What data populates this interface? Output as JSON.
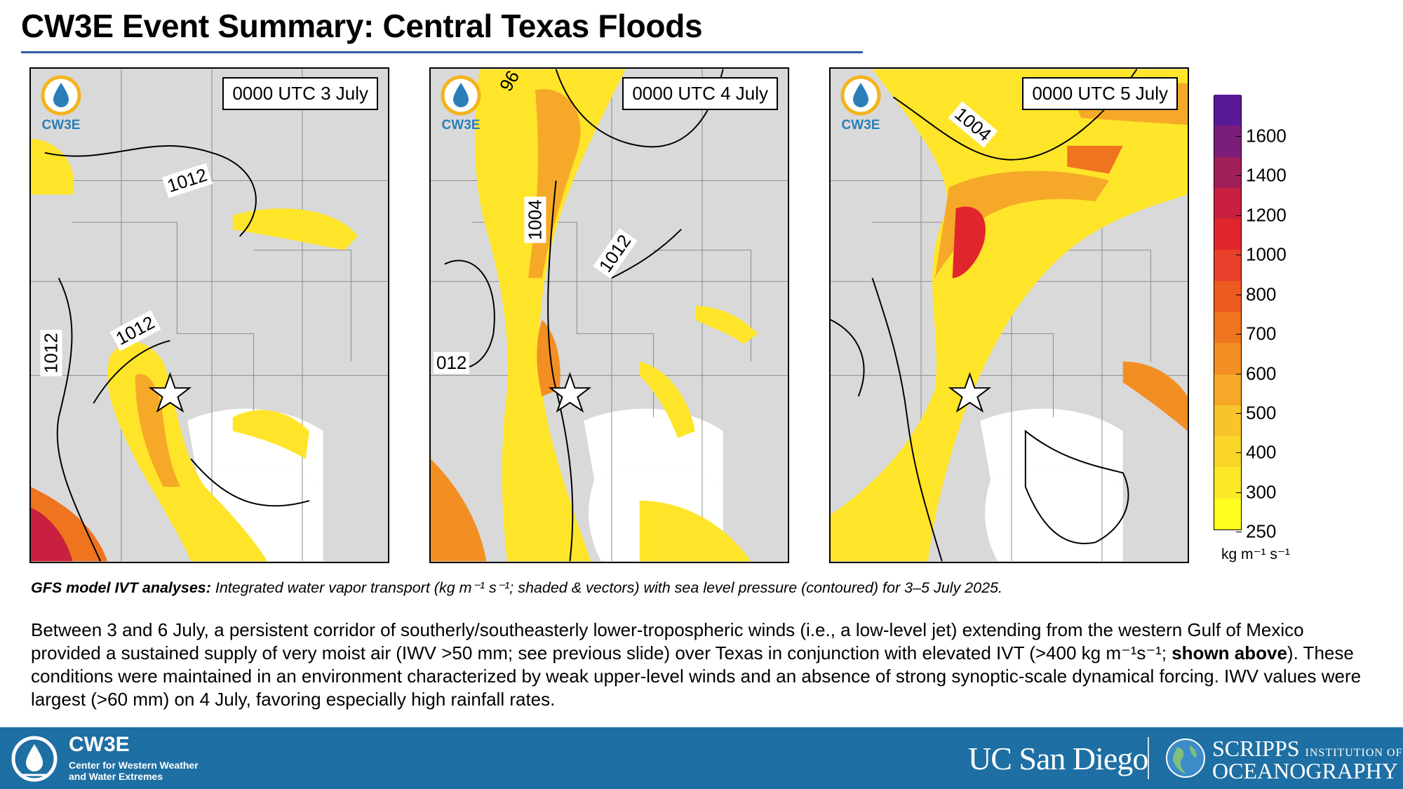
{
  "title": "CW3E Event Summary: Central Texas Floods",
  "panels": [
    {
      "time_label": "0000 UTC 3 July",
      "logo_text": "CW3E",
      "contour_labels": [
        "1012",
        "1012",
        "1012"
      ]
    },
    {
      "time_label": "0000 UTC 4 July",
      "logo_text": "CW3E",
      "contour_labels": [
        "1004",
        "1012",
        "012",
        "96"
      ]
    },
    {
      "time_label": "0000 UTC 5 July",
      "logo_text": "CW3E",
      "contour_labels": [
        "1004"
      ]
    }
  ],
  "colorbar": {
    "ticks": [
      "1600",
      "1400",
      "1200",
      "1000",
      "800",
      "700",
      "600",
      "500",
      "400",
      "300",
      "250"
    ],
    "unit": "kg m⁻¹ s⁻¹",
    "colors": [
      "#ffff22",
      "#fde828",
      "#fad62a",
      "#f8c42a",
      "#f6a928",
      "#f38e22",
      "#ef7420",
      "#ed5a20",
      "#e8402a",
      "#e0262c",
      "#c8203e",
      "#a01f5a",
      "#7a1e7a",
      "#5a1a96"
    ]
  },
  "caption": {
    "bold": "GFS model IVT analyses:",
    "rest": " Integrated water vapor transport (kg m⁻¹ s⁻¹; shaded & vectors) with sea level pressure (contoured) for 3–5 July 2025."
  },
  "body": {
    "part1": "Between 3 and 6 July, a persistent corridor of southerly/southeasterly lower-tropospheric winds (i.e., a low-level jet) extending from the western Gulf of Mexico provided a sustained supply of very moist air (IWV >50 mm; see previous slide) over Texas in conjunction with elevated IVT (>400 kg m⁻¹s⁻¹; ",
    "bold": "shown above",
    "part2": "). These conditions were maintained in an environment characterized by weak upper-level winds and an absence of strong synoptic-scale dynamical forcing. IWV values were largest (>60 mm) on 4 July, favoring especially high rainfall rates."
  },
  "footer": {
    "org": "CW3E",
    "org_sub": "Center for Western Weather and Water Extremes",
    "ucsd": "UC San Diego",
    "scripps_line1": "SCRIPPS",
    "scripps_small": "INSTITUTION OF",
    "scripps_line2": "OCEANOGRAPHY"
  }
}
